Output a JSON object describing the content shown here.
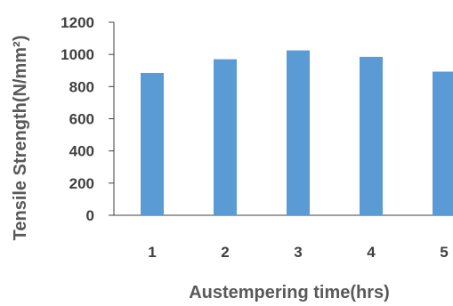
{
  "chart_data": {
    "type": "bar",
    "categories": [
      "1",
      "2",
      "3",
      "4",
      "5"
    ],
    "values": [
      885,
      970,
      1025,
      985,
      893
    ],
    "title": "",
    "xlabel": "Austempering time(hrs)",
    "ylabel": "Tensile Strength(N/mm²)",
    "ylim": [
      0,
      1200
    ],
    "yticks": [
      "0",
      "200",
      "400",
      "600",
      "800",
      "1000",
      "1200"
    ],
    "grid": false,
    "legend": "none",
    "bar_color": "#5b9bd5",
    "axis_color": "#404040",
    "text_color": "#595959"
  }
}
